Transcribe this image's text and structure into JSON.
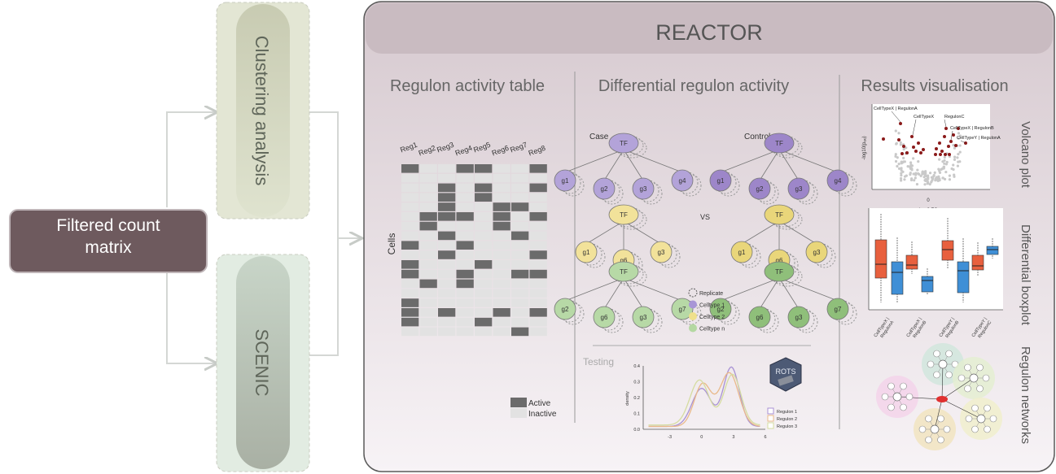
{
  "input": {
    "label": "Filtered count matrix"
  },
  "branches": [
    {
      "label": "Clustering analysis"
    },
    {
      "label": "SCENIC"
    }
  ],
  "reactor": {
    "title": "REACTOR",
    "panels": {
      "table": {
        "title": "Regulon activity table",
        "columns": [
          "Reg1",
          "Reg2",
          "Reg3",
          "Reg4",
          "Reg5",
          "Reg6",
          "Reg7",
          "Reg8"
        ],
        "row_label": "Cells",
        "legend": {
          "active": "Active",
          "inactive": "Inactive"
        },
        "active_cells": [
          [
            0,
            3,
            4,
            7
          ],
          [],
          [
            2,
            4,
            7
          ],
          [
            2,
            4
          ],
          [
            2,
            5,
            6
          ],
          [
            1,
            2,
            3,
            5,
            7
          ],
          [
            1,
            5
          ],
          [
            2,
            6
          ],
          [
            0,
            3
          ],
          [
            2,
            7
          ],
          [
            0,
            4
          ],
          [
            0,
            3,
            6,
            7
          ],
          [
            1,
            3
          ],
          [],
          [
            0
          ],
          [
            0,
            2,
            5,
            7
          ],
          [
            0,
            4
          ],
          [
            6
          ]
        ]
      },
      "differential": {
        "title": "Differential regulon activity",
        "case_label": "Case",
        "control_label": "Control",
        "vs_label": "VS",
        "tf_label": "TF",
        "networks": [
          {
            "genes": [
              "g1",
              "g2",
              "g3",
              "g4"
            ],
            "color": "#b3a3d9"
          },
          {
            "genes": [
              "g1",
              "g6",
              "g3"
            ],
            "color": "#f2e29a"
          },
          {
            "genes": [
              "g2",
              "g6",
              "g3",
              "g7"
            ],
            "color": "#b7d9a6"
          }
        ],
        "control_colors": [
          "#9d86c9",
          "#e9d67a",
          "#8fbf7a"
        ],
        "legend": [
          {
            "label": "Replicate",
            "color": "none"
          },
          {
            "label": "Celltype 1",
            "color": "#a896d6"
          },
          {
            "label": "Celltype 2",
            "color": "#efe08c"
          },
          {
            "label": "Celltype n",
            "color": "#b4d8a2"
          }
        ],
        "testing_label": "Testing",
        "rots_label": "ROTS",
        "density_chart": {
          "ylabel": "density",
          "x_ticks": [
            "-3",
            "0",
            "3",
            "6"
          ],
          "y_ticks": [
            "0.0",
            "0.1",
            "0.2",
            "0.3",
            "0.4"
          ],
          "series": [
            {
              "name": "Regulon 1",
              "color": "#a891d4"
            },
            {
              "name": "Regulon 2",
              "color": "#e9b98a"
            },
            {
              "name": "Regulon 3",
              "color": "#d5dca0"
            }
          ]
        }
      },
      "results": {
        "title": "Results visualisation",
        "volcano": {
          "side_label": "Volcano plot",
          "ylabel": "-log10(pₐₓⱼ)",
          "xlabel_value": "0",
          "xlabel": "Log2 FC",
          "annotations": [
            "CellTypeX | RegulonA",
            "CellTypeX",
            "RegulonC",
            "CellTypeX | RegulonB",
            "CellTypeY | RegulonA"
          ]
        },
        "boxplot": {
          "side_label": "Differential boxplot",
          "categories": [
            "CellTypeX | RegulonA",
            "CellTypeX | RegulonB",
            "CellTypeY | RegulonB",
            "CellTypeY | RegulonC"
          ]
        },
        "networks": {
          "side_label": "Regulon networks"
        }
      }
    }
  }
}
